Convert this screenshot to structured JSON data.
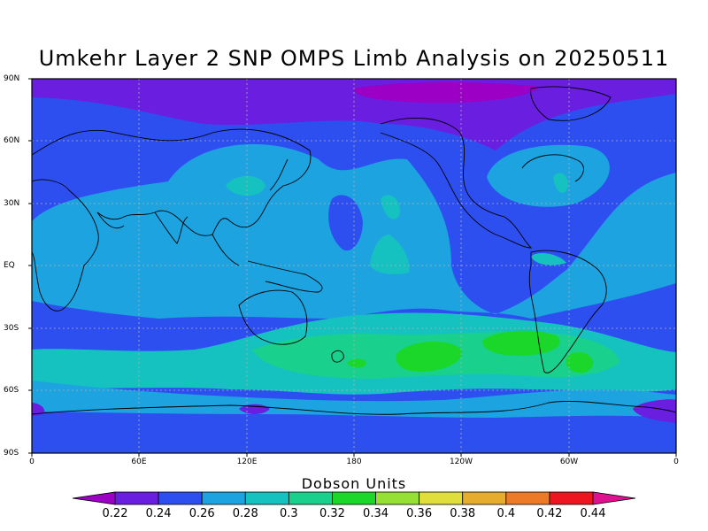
{
  "title": "Umkehr Layer 2 SNP OMPS Limb Analysis on 20250511",
  "colorbar_label": "Dobson Units",
  "lat_labels": [
    "90N",
    "60N",
    "30N",
    "EQ",
    "30S",
    "60S",
    "90S"
  ],
  "lon_labels": [
    "0",
    "60E",
    "120E",
    "180",
    "120W",
    "60W",
    "0"
  ],
  "colorbar": {
    "ticks": [
      "0.22",
      "0.24",
      "0.26",
      "0.28",
      "0.3",
      "0.32",
      "0.34",
      "0.36",
      "0.38",
      "0.4",
      "0.42",
      "0.44"
    ],
    "colors": [
      "#9b00c4",
      "#6a1ee0",
      "#2e4ff0",
      "#1da3e0",
      "#16c2c0",
      "#19d08c",
      "#1ad72a",
      "#96e036",
      "#e0de3a",
      "#e6ac2e",
      "#ec7a26",
      "#ee1420",
      "#de1290"
    ]
  },
  "map": {
    "lon_range": [
      0,
      360
    ],
    "lat_range": [
      -90,
      90
    ],
    "background_level": "0.24-0.26",
    "colors": {
      "purple": "#7b12d4",
      "magenta": "#9b00c4",
      "blue": "#2e4ff0",
      "light_blue": "#1da3e0",
      "teal": "#16c2c0",
      "green": "#19d08c",
      "bright_green": "#1ad72a"
    }
  }
}
